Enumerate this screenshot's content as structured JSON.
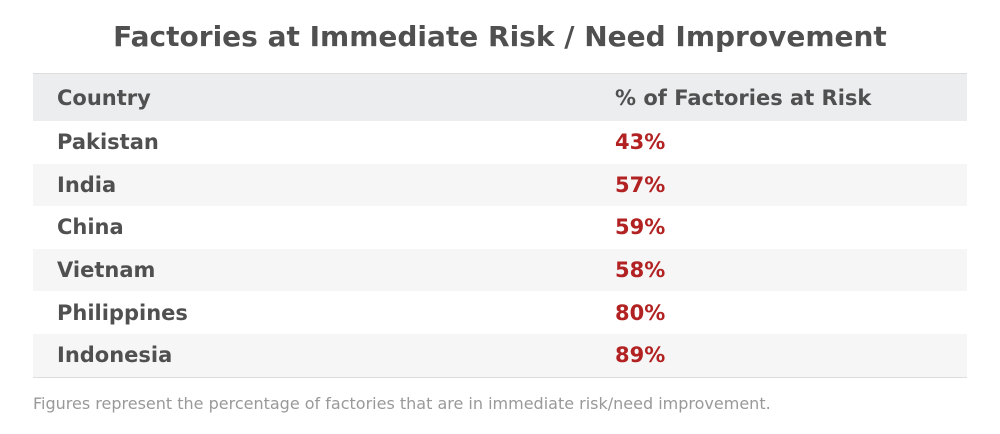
{
  "chart_data": {
    "type": "table",
    "title": "Factories at Immediate Risk / Need Improvement",
    "columns": [
      "Country",
      "% of Factories at Risk"
    ],
    "rows": [
      {
        "country": "Pakistan",
        "value": "43%"
      },
      {
        "country": "India",
        "value": "57%"
      },
      {
        "country": "China",
        "value": "59%"
      },
      {
        "country": "Vietnam",
        "value": "58%"
      },
      {
        "country": "Philippines",
        "value": "80%"
      },
      {
        "country": "Indonesia",
        "value": "89%"
      }
    ],
    "footnote": "Figures represent the percentage of factories that are in immediate risk/need improvement.",
    "colors": {
      "title": "#505050",
      "header_bg": "#ecedee",
      "stripe_bg": "#f6f6f6",
      "value": "#b22222",
      "footnote": "#999999"
    }
  }
}
